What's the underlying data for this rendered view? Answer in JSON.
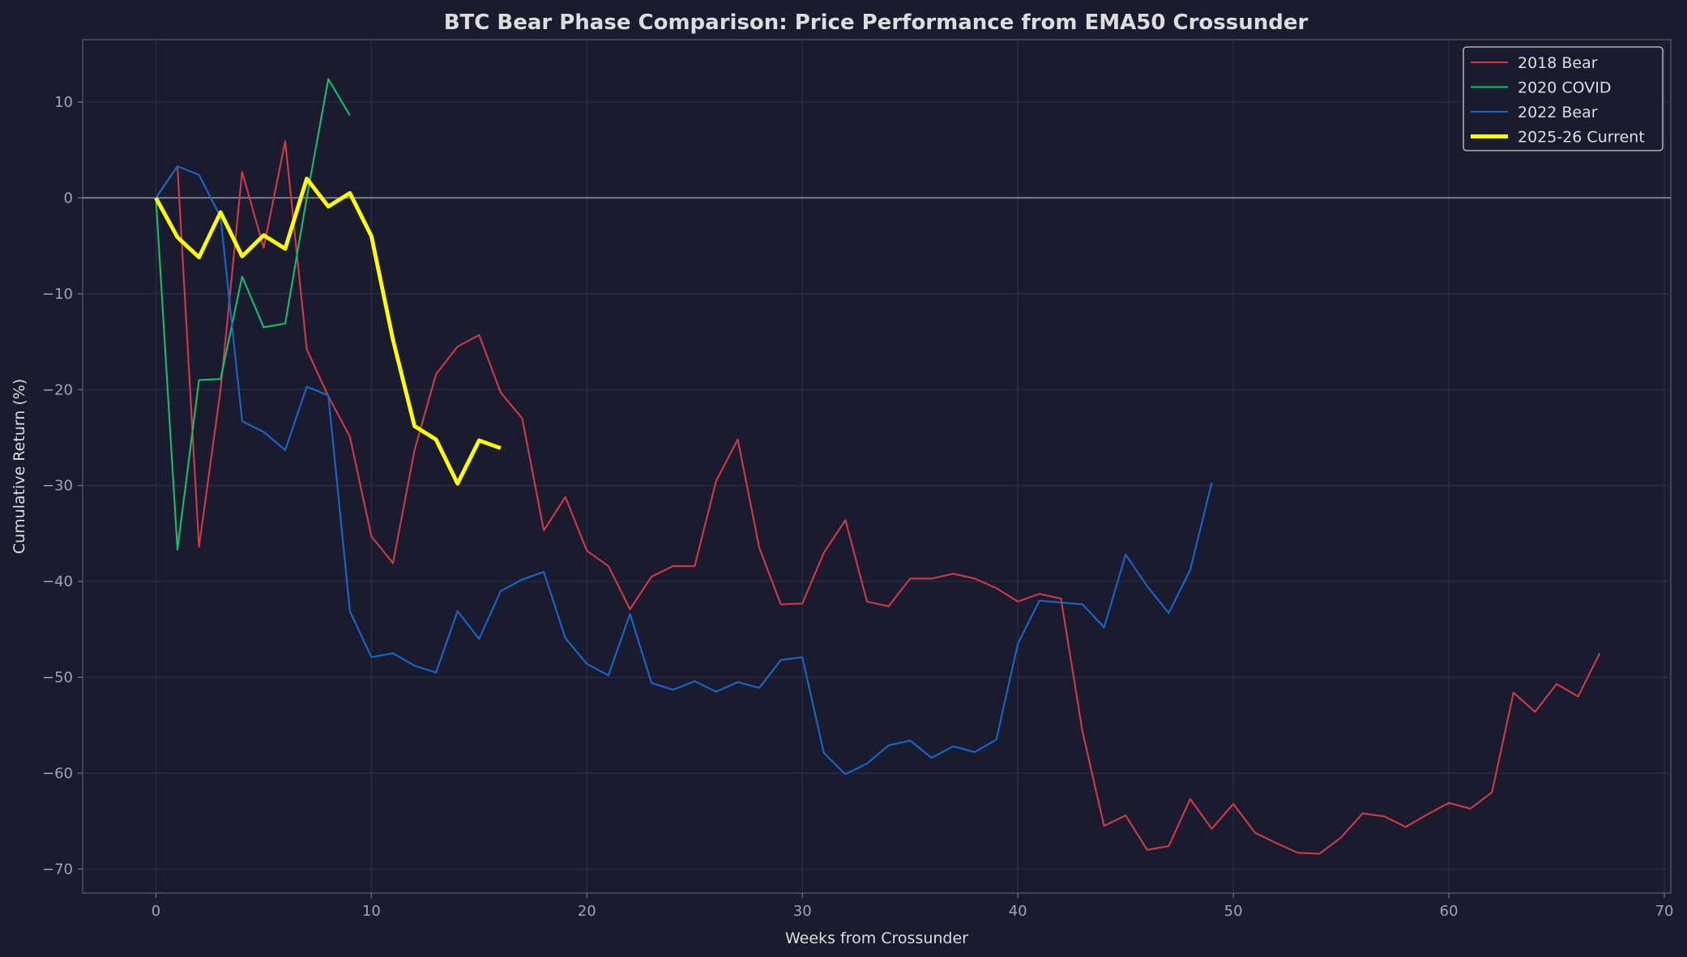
{
  "chart_data": {
    "type": "line",
    "title": "BTC Bear Phase Comparison: Price Performance from EMA50 Crossunder",
    "xlabel": "Weeks from Crossunder",
    "ylabel": "Cumulative Return (%)",
    "xlim": [
      -3.4,
      70.3
    ],
    "ylim": [
      -72.5,
      16.5
    ],
    "xticks": [
      0,
      10,
      20,
      30,
      40,
      50,
      60,
      70
    ],
    "yticks": [
      10,
      0,
      -10,
      -20,
      -30,
      -40,
      -50,
      -60,
      -70
    ],
    "ytick_labels": [
      "10",
      "0",
      "−10",
      "−20",
      "−30",
      "−40",
      "−50",
      "−60",
      "−70"
    ],
    "grid": true,
    "zero_line": true,
    "legend": "top-right",
    "colors": {
      "background": "#1a1b2e",
      "text": "#dddddd",
      "tick": "#a0a3b5"
    },
    "series": [
      {
        "name": "2018 Bear",
        "color": "#d13a45",
        "width": 1.5,
        "values": [
          0,
          3.3,
          -36.4,
          -20,
          2.7,
          -5.2,
          5.9,
          -15.8,
          -20.7,
          -24.9,
          -35.3,
          -38.1,
          -26.3,
          -18.4,
          -15.5,
          -14.3,
          -20.3,
          -23,
          -34.7,
          -31.2,
          -36.8,
          -38.4,
          -42.9,
          -39.5,
          -38.4,
          -38.4,
          -29.5,
          -25.2,
          -36.5,
          -42.4,
          -42.3,
          -37,
          -33.6,
          -42.1,
          -42.6,
          -39.7,
          -39.7,
          -39.2,
          -39.7,
          -40.7,
          -42.1,
          -41.3,
          -41.8,
          -55.7,
          -65.5,
          -64.4,
          -68.0,
          -67.6,
          -62.7,
          -65.8,
          -63.2,
          -66.2,
          -67.3,
          -68.3,
          -68.4,
          -66.7,
          -64.2,
          -64.5,
          -65.6,
          -64.3,
          -63.1,
          -63.7,
          -62.0,
          -51.6,
          -53.6,
          -50.7,
          -52.0,
          -47.5
        ]
      },
      {
        "name": "2020 COVID",
        "color": "#12c06a",
        "width": 1.5,
        "values": [
          0,
          -36.7,
          -19.0,
          -18.9,
          -8.2,
          -13.5,
          -13.1,
          0,
          12.4,
          8.6
        ]
      },
      {
        "name": "2022 Bear",
        "color": "#1468c8",
        "width": 1.5,
        "values": [
          0,
          3.3,
          2.4,
          -2,
          -23.3,
          -24.4,
          -26.3,
          -19.7,
          -20.6,
          -43.1,
          -47.9,
          -47.5,
          -48.8,
          -49.5,
          -43.1,
          -46.0,
          -41.0,
          -39.8,
          -39.0,
          -45.9,
          -48.6,
          -49.8,
          -43.4,
          -50.6,
          -51.3,
          -50.4,
          -51.5,
          -50.5,
          -51.1,
          -48.2,
          -47.9,
          -57.9,
          -60.1,
          -59.0,
          -57.1,
          -56.6,
          -58.4,
          -57.2,
          -57.8,
          -56.5,
          -46.5,
          -42.0,
          -42.2,
          -42.4,
          -44.8,
          -37.2,
          -40.5,
          -43.3,
          -38.8,
          -29.7
        ]
      },
      {
        "name": "2025-26 Current",
        "color": "#ffff00",
        "width": 3.5,
        "values": [
          0,
          -4.1,
          -6.2,
          -1.5,
          -6.1,
          -3.9,
          -5.3,
          2.0,
          -0.9,
          0.5,
          -4.0,
          -14.8,
          -23.8,
          -25.2,
          -29.8,
          -25.3,
          -26.1
        ]
      }
    ]
  }
}
